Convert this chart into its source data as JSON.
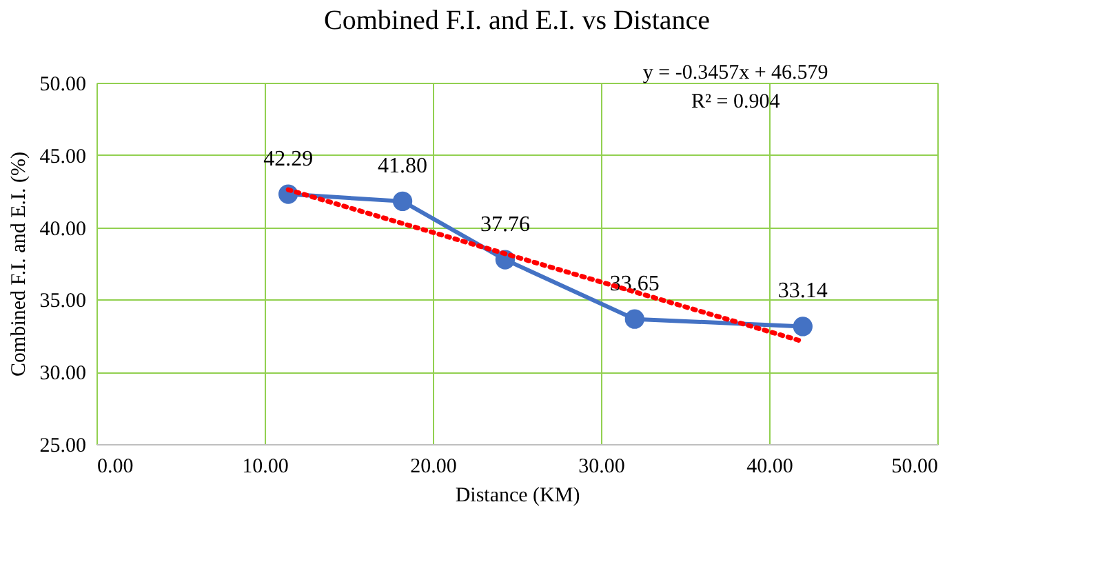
{
  "chart_data": {
    "type": "line",
    "title": "Combined F.I. and E.I. vs Distance",
    "xlabel": "Distance (KM)",
    "ylabel": "Combined F.I. and E.I. (%)",
    "x": [
      11.4,
      18.2,
      24.3,
      32.0,
      42.0
    ],
    "series": [
      {
        "color": "#4472c4",
        "values": [
          42.29,
          41.8,
          37.76,
          33.65,
          33.14
        ],
        "value_labels": [
          "42.29",
          "41.80",
          "37.76",
          "33.65",
          "33.14"
        ],
        "marker": "circle",
        "line_style": "solid"
      },
      {
        "type": "line",
        "x": [
          11.4,
          42.0
        ],
        "values": [
          42.6,
          32.1
        ],
        "color": "#ff0000",
        "marker": "none",
        "line_style": "dotted"
      }
    ],
    "xlim": [
      0,
      50
    ],
    "xticks": [
      {
        "value": 0,
        "label": "0.00"
      },
      {
        "value": 10,
        "label": "10.00"
      },
      {
        "value": 20,
        "label": "20.00"
      },
      {
        "value": 30,
        "label": "30.00"
      },
      {
        "value": 40,
        "label": "40.00"
      },
      {
        "value": 50,
        "label": "50.00"
      }
    ],
    "ylim": [
      25,
      50
    ],
    "yticks": [
      {
        "value": 25,
        "label": "25.00"
      },
      {
        "value": 30,
        "label": "30.00"
      },
      {
        "value": 35,
        "label": "35.00"
      },
      {
        "value": 40,
        "label": "40.00"
      },
      {
        "value": 45,
        "label": "45.00"
      },
      {
        "value": 50,
        "label": "50.00"
      }
    ],
    "grid": true,
    "annotations": [
      "y = -0.3457x + 46.579",
      "R² = 0.904"
    ]
  }
}
